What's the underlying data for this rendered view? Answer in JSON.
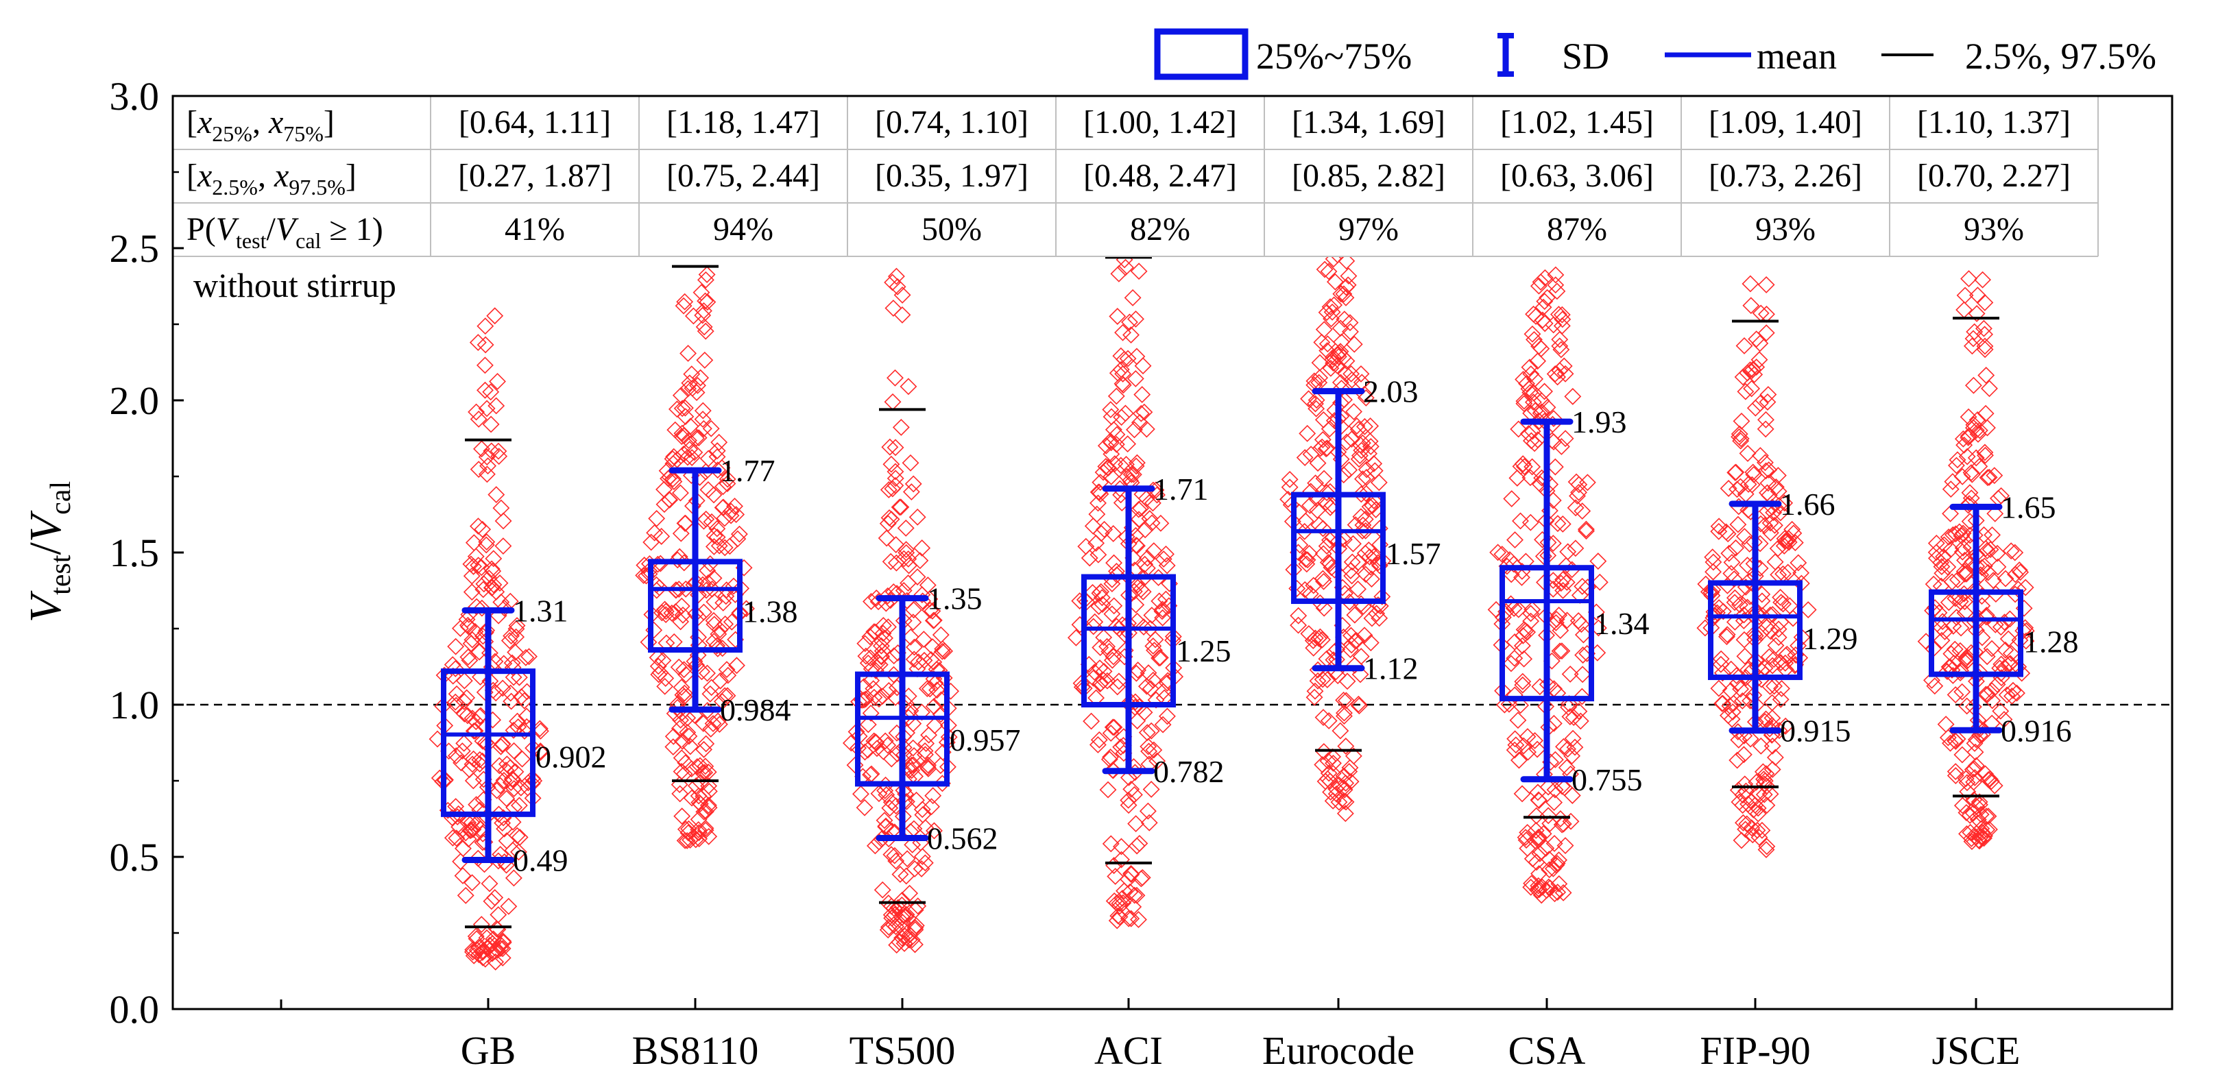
{
  "chart_data": {
    "type": "box",
    "ylabel_main": "V",
    "ylabel_sub1": "test",
    "ylabel_sub2": "cal",
    "ylim": [
      0.0,
      3.0
    ],
    "yticks": [
      "0.0",
      "0.5",
      "1.0",
      "1.5",
      "2.0",
      "2.5",
      "3.0"
    ],
    "reference_line": 1.0,
    "annotation": "without stirrup",
    "legend": {
      "box": "25%~75%",
      "sd": "SD",
      "mean": "mean",
      "pct": "2.5%, 97.5%"
    },
    "colors": {
      "box": "#0a14e6",
      "points": "#ff2a2a",
      "pct_line": "#000000",
      "axis": "#000000"
    },
    "table": {
      "row_labels": [
        "[x25%, x75%]",
        "[x2.5%, x97.5%]",
        "P(Vtest/Vcal ≥ 1)"
      ],
      "iqr": [
        "[0.64, 1.11]",
        "[1.18, 1.47]",
        "[0.74, 1.10]",
        "[1.00, 1.42]",
        "[1.34, 1.69]",
        "[1.02, 1.45]",
        "[1.09, 1.40]",
        "[1.10, 1.37]"
      ],
      "p95": [
        "[0.27, 1.87]",
        "[0.75, 2.44]",
        "[0.35, 1.97]",
        "[0.48, 2.47]",
        "[0.85, 2.82]",
        "[0.63, 3.06]",
        "[0.73, 2.26]",
        "[0.70, 2.27]"
      ],
      "prob": [
        "41%",
        "94%",
        "50%",
        "82%",
        "97%",
        "87%",
        "93%",
        "93%"
      ]
    },
    "categories": [
      "GB",
      "BS8110",
      "TS500",
      "ACI",
      "Eurocode",
      "CSA",
      "FIP-90",
      "JSCE"
    ],
    "series": [
      {
        "name": "GB",
        "q1": 0.64,
        "q3": 1.11,
        "mean": 0.902,
        "sd_low": 0.49,
        "sd_high": 1.31,
        "p2_5": 0.27,
        "p97_5": 1.87,
        "lbl_mean": "0.902",
        "lbl_low": "0.49",
        "lbl_high": "1.31",
        "data_min": 0.15,
        "data_max": 2.3
      },
      {
        "name": "BS8110",
        "q1": 1.18,
        "q3": 1.47,
        "mean": 1.38,
        "sd_low": 0.984,
        "sd_high": 1.77,
        "p2_5": 0.75,
        "p97_5": 2.44,
        "lbl_mean": "1.38",
        "lbl_low": "0.984",
        "lbl_high": "1.77",
        "data_min": 0.55,
        "data_max": 2.45
      },
      {
        "name": "TS500",
        "q1": 0.74,
        "q3": 1.1,
        "mean": 0.957,
        "sd_low": 0.562,
        "sd_high": 1.35,
        "p2_5": 0.35,
        "p97_5": 1.97,
        "lbl_mean": "0.957",
        "lbl_low": "0.562",
        "lbl_high": "1.35",
        "data_min": 0.21,
        "data_max": 2.42
      },
      {
        "name": "ACI",
        "q1": 1.0,
        "q3": 1.42,
        "mean": 1.25,
        "sd_low": 0.782,
        "sd_high": 1.71,
        "p2_5": 0.48,
        "p97_5": 2.47,
        "lbl_mean": "1.25",
        "lbl_low": "0.782",
        "lbl_high": "1.71",
        "data_min": 0.29,
        "data_max": 2.47
      },
      {
        "name": "Eurocode",
        "q1": 1.34,
        "q3": 1.69,
        "mean": 1.57,
        "sd_low": 1.12,
        "sd_high": 2.03,
        "p2_5": 0.85,
        "p97_5": 2.82,
        "lbl_mean": "1.57",
        "lbl_low": "1.12",
        "lbl_high": "2.03",
        "data_min": 0.64,
        "data_max": 2.48
      },
      {
        "name": "CSA",
        "q1": 1.02,
        "q3": 1.45,
        "mean": 1.34,
        "sd_low": 0.755,
        "sd_high": 1.93,
        "p2_5": 0.63,
        "p97_5": 3.06,
        "lbl_mean": "1.34",
        "lbl_low": "0.755",
        "lbl_high": "1.93",
        "data_min": 0.36,
        "data_max": 2.42
      },
      {
        "name": "FIP-90",
        "q1": 1.09,
        "q3": 1.4,
        "mean": 1.29,
        "sd_low": 0.915,
        "sd_high": 1.66,
        "p2_5": 0.73,
        "p97_5": 2.26,
        "lbl_mean": "1.29",
        "lbl_low": "0.915",
        "lbl_high": "1.66",
        "data_min": 0.52,
        "data_max": 2.43
      },
      {
        "name": "JSCE",
        "q1": 1.1,
        "q3": 1.37,
        "mean": 1.28,
        "sd_low": 0.916,
        "sd_high": 1.65,
        "p2_5": 0.7,
        "p97_5": 2.27,
        "lbl_mean": "1.28",
        "lbl_low": "0.916",
        "lbl_high": "1.65",
        "data_min": 0.55,
        "data_max": 2.42
      }
    ]
  }
}
